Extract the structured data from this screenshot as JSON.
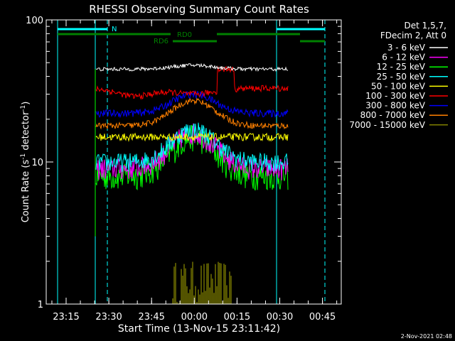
{
  "chart_data": {
    "type": "line",
    "title": "RHESSI Observing Summary Count Rates",
    "xlabel": "Start Time (13-Nov-15 23:11:42)",
    "ylabel": "Count Rate (s",
    "ylabel_sup": "-1",
    "ylabel_tail": " detector",
    "ylabel_end": ")",
    "yscale": "log",
    "ylim": [
      1,
      100
    ],
    "y_ticks": [
      {
        "value": 1,
        "label": "1"
      },
      {
        "value": 10,
        "label": "10"
      },
      {
        "value": 100,
        "label": "100"
      }
    ],
    "x_ticks": [
      "23:15",
      "23:30",
      "23:45",
      "00:00",
      "00:15",
      "00:30",
      "00:45"
    ],
    "footer_date": "2-Nov-2021 02:48",
    "legend_header": [
      "Det 1,5,7,",
      "FDecim 2, Att 0"
    ],
    "flags": [
      {
        "label": "N",
        "color": "#00ffff"
      },
      {
        "label": "RD0",
        "color": "#008000"
      },
      {
        "label": "RD6",
        "color": "#008000"
      }
    ],
    "series": [
      {
        "name": "3 - 6 keV",
        "color": "#ffffff",
        "level_out": 45,
        "level_peak": 48
      },
      {
        "name": "6 - 12 keV",
        "color": "#ff00ff",
        "level_out": 9,
        "level_peak": 16
      },
      {
        "name": "12 - 25 keV",
        "color": "#00ff00",
        "level_out": 8,
        "level_peak": 15
      },
      {
        "name": "25 - 50 keV",
        "color": "#00ffff",
        "level_out": 10,
        "level_peak": 17
      },
      {
        "name": "50 - 100 keV",
        "color": "#ffff00",
        "level_out": 15,
        "level_peak": 15
      },
      {
        "name": "100 - 300 keV",
        "color": "#ff0000",
        "level_out": 33,
        "level_peak": 30
      },
      {
        "name": "300 - 800 keV",
        "color": "#0000ff",
        "level_out": 22,
        "level_peak": 30
      },
      {
        "name": "800 - 7000 keV",
        "color": "#ff8000",
        "level_out": 18,
        "level_peak": 27
      },
      {
        "name": "7000 - 15000 keV",
        "color": "#808000",
        "level_out": 1,
        "level_peak": 2
      }
    ]
  }
}
